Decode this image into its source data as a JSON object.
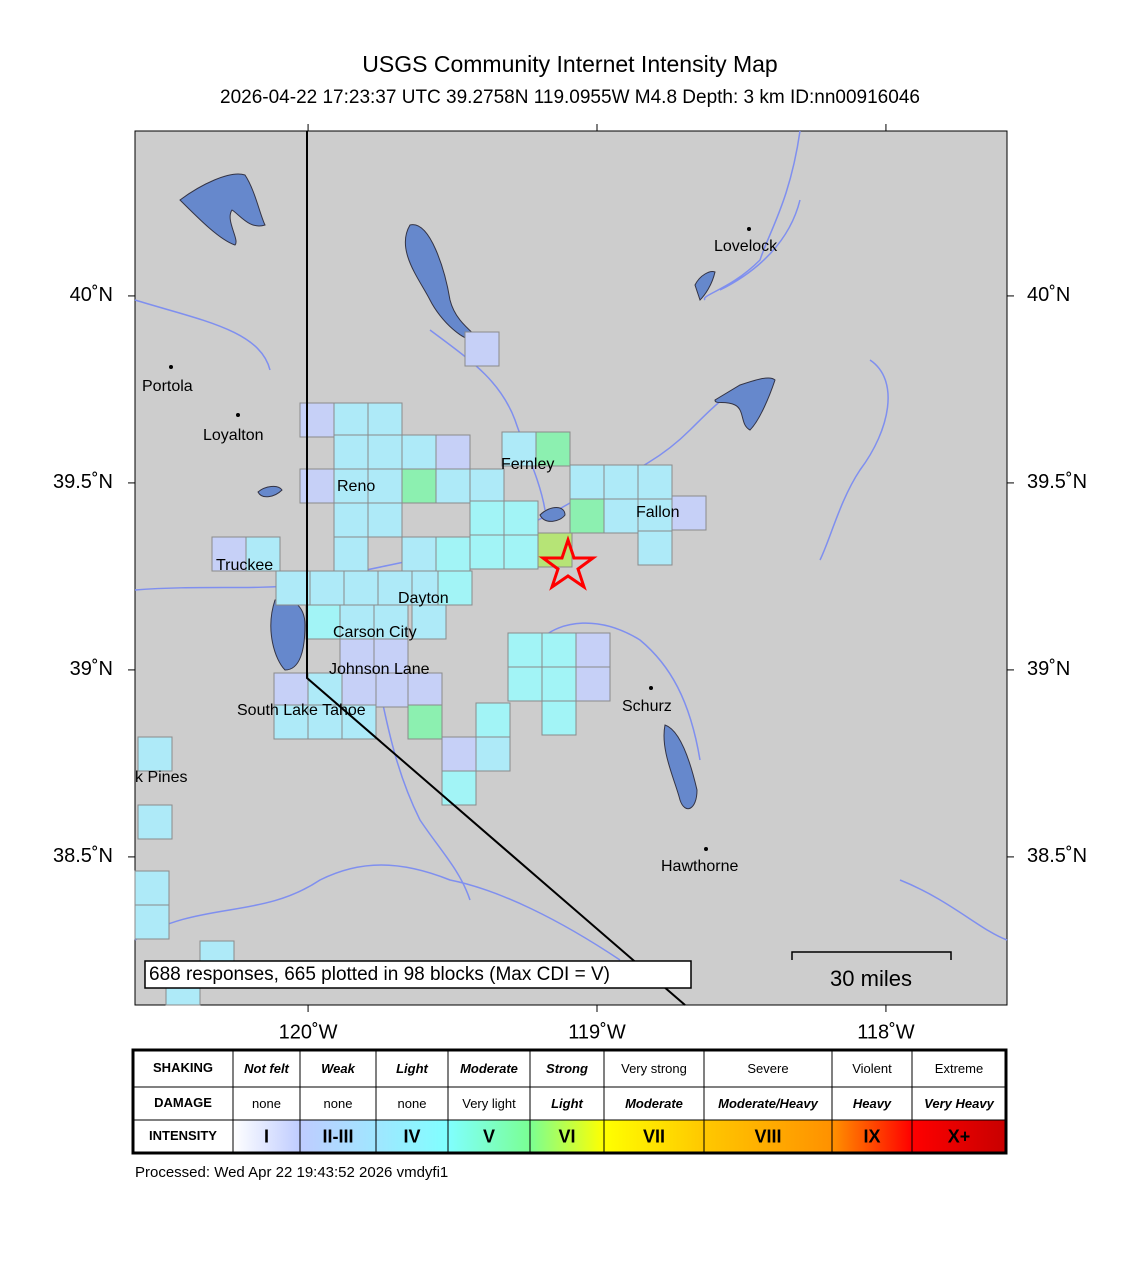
{
  "header": {
    "title": "USGS Community Internet Intensity Map",
    "subtitle": "2026-04-22 17:23:37 UTC 39.2758N 119.0955W M4.8 Depth: 3 km ID:nn00916046"
  },
  "map": {
    "lon_range": [
      -120.599,
      -117.581
    ],
    "lat_range": [
      38.104,
      40.441
    ],
    "lon_ticks": [
      {
        "value": -120,
        "label": "120˚W"
      },
      {
        "value": -119,
        "label": "119˚W"
      },
      {
        "value": -118,
        "label": "118˚W"
      }
    ],
    "lat_ticks": [
      {
        "value": 40,
        "label": "40˚N"
      },
      {
        "value": 39.5,
        "label": "39.5˚N"
      },
      {
        "value": 39,
        "label": "39˚N"
      },
      {
        "value": 38.5,
        "label": "38.5˚N"
      }
    ],
    "cities": [
      "Lovelock",
      "Portola",
      "Loyalton",
      "Fernley",
      "Reno",
      "Fallon",
      "Truckee",
      "Dayton",
      "Carson City",
      "Johnson Lane",
      "Schurz",
      "South Lake Tahoe",
      "k Pines",
      "Hawthorne"
    ],
    "note": "688 responses, 665 plotted in 98 blocks (Max CDI = V)",
    "scale_label": "30 miles"
  },
  "legend": {
    "row_labels": [
      "SHAKING",
      "DAMAGE",
      "INTENSITY"
    ],
    "shaking": [
      "Not felt",
      "Weak",
      "Light",
      "Moderate",
      "Strong",
      "Very strong",
      "Severe",
      "Violent",
      "Extreme"
    ],
    "damage": [
      "none",
      "none",
      "none",
      "Very light",
      "Light",
      "Moderate",
      "Moderate/Heavy",
      "Heavy",
      "Very Heavy"
    ],
    "intensity": [
      "I",
      "II-III",
      "IV",
      "V",
      "VI",
      "VII",
      "VIII",
      "IX",
      "X+"
    ]
  },
  "footer": "Processed: Wed Apr 22 19:43:52 2026 vmdyfi1"
}
